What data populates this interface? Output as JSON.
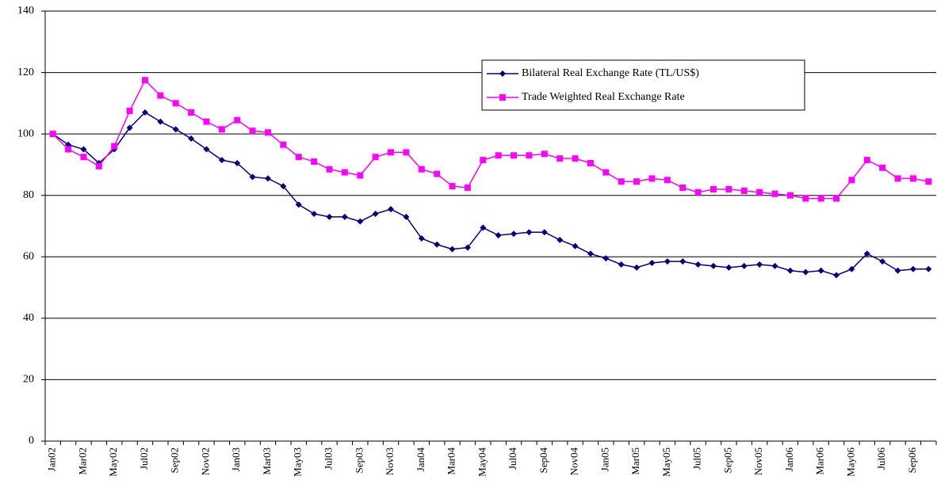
{
  "chart_data": {
    "type": "line",
    "categories": [
      "Jan02",
      null,
      "Mar02",
      null,
      "May02",
      null,
      "Jul02",
      null,
      "Sep02",
      null,
      "Nov02",
      null,
      "Jan03",
      null,
      "Mar03",
      null,
      "May03",
      null,
      "Jul03",
      null,
      "Sep03",
      null,
      "Nov03",
      null,
      "Jan04",
      null,
      "Mar04",
      null,
      "May04",
      null,
      "Jul04",
      null,
      "Sep04",
      null,
      "Nov04",
      null,
      "Jan05",
      null,
      "Mar05",
      null,
      "May05",
      null,
      "Jul05",
      null,
      "Sep05",
      null,
      "Nov05",
      null,
      "Jan06",
      null,
      "Mar06",
      null,
      "May06",
      null,
      "Jul06",
      null,
      "Sep06",
      null
    ],
    "series": [
      {
        "name": "Bilateral Real Exchange Rate (TL/US$)",
        "color": "#000080",
        "marker": "diamond",
        "values": [
          100,
          96.5,
          95,
          90.5,
          95,
          102,
          107,
          104,
          101.5,
          98.5,
          95,
          91.5,
          90.5,
          86,
          85.5,
          83,
          77,
          74,
          73,
          73,
          71.5,
          74,
          75.5,
          73,
          66,
          64,
          62.5,
          63,
          69.5,
          67,
          67.5,
          68,
          68,
          65.5,
          63.5,
          61,
          59.5,
          57.5,
          56.5,
          58,
          58.5,
          58.5,
          57.5,
          57,
          56.5,
          57,
          57.5,
          57,
          55.5,
          55,
          55.5,
          54,
          56,
          61,
          58.5,
          55.5,
          56,
          56
        ]
      },
      {
        "name": "Trade Weighted Real Exchange Rate",
        "color": "#ff00ff",
        "marker": "square",
        "values": [
          100,
          95,
          92.5,
          89.5,
          96,
          107.5,
          117.5,
          112.5,
          110,
          107,
          104,
          101.5,
          104.5,
          101,
          100.5,
          96.5,
          92.5,
          91,
          88.5,
          87.5,
          86.5,
          92.5,
          94,
          94,
          88.5,
          87,
          83,
          82.5,
          91.5,
          93,
          93,
          93,
          93.5,
          92,
          92,
          90.5,
          87.5,
          84.5,
          84.5,
          85.5,
          85,
          82.5,
          81,
          82,
          82,
          81.5,
          81,
          80.5,
          80,
          79,
          79,
          79,
          85,
          91.5,
          89,
          85.5,
          85.5,
          84.5
        ]
      }
    ],
    "ylim": [
      0,
      140
    ],
    "yticks": [
      0,
      20,
      40,
      60,
      80,
      100,
      120,
      140
    ],
    "grid": true
  }
}
